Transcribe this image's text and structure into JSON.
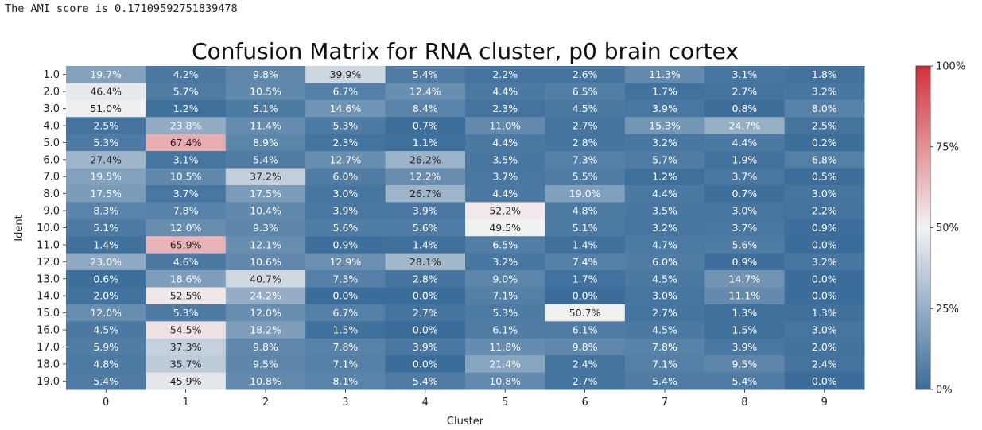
{
  "output_text": "The AMI score is 0.17109592751839478",
  "chart_data": {
    "type": "heatmap",
    "title": "Confusion Matrix for RNA cluster, p0 brain cortex",
    "xlabel": "Cluster",
    "ylabel": "Ident",
    "x_categories": [
      "0",
      "1",
      "2",
      "3",
      "4",
      "5",
      "6",
      "7",
      "8",
      "9"
    ],
    "y_categories": [
      "1.0",
      "2.0",
      "3.0",
      "4.0",
      "5.0",
      "6.0",
      "7.0",
      "8.0",
      "9.0",
      "10.0",
      "11.0",
      "12.0",
      "13.0",
      "14.0",
      "15.0",
      "16.0",
      "17.0",
      "18.0",
      "19.0"
    ],
    "values": [
      [
        19.7,
        4.2,
        9.8,
        39.9,
        5.4,
        2.2,
        2.6,
        11.3,
        3.1,
        1.8
      ],
      [
        46.4,
        5.7,
        10.5,
        6.7,
        12.4,
        4.4,
        6.5,
        1.7,
        2.7,
        3.2
      ],
      [
        51.0,
        1.2,
        5.1,
        14.6,
        8.4,
        2.3,
        4.5,
        3.9,
        0.8,
        8.0
      ],
      [
        2.5,
        23.8,
        11.4,
        5.3,
        0.7,
        11.0,
        2.7,
        15.3,
        24.7,
        2.5
      ],
      [
        5.3,
        67.4,
        8.9,
        2.3,
        1.1,
        4.4,
        2.8,
        3.2,
        4.4,
        0.2
      ],
      [
        27.4,
        3.1,
        5.4,
        12.7,
        26.2,
        3.5,
        7.3,
        5.7,
        1.9,
        6.8
      ],
      [
        19.5,
        10.5,
        37.2,
        6.0,
        12.2,
        3.7,
        5.5,
        1.2,
        3.7,
        0.5
      ],
      [
        17.5,
        3.7,
        17.5,
        3.0,
        26.7,
        4.4,
        19.0,
        4.4,
        0.7,
        3.0
      ],
      [
        8.3,
        7.8,
        10.4,
        3.9,
        3.9,
        52.2,
        4.8,
        3.5,
        3.0,
        2.2
      ],
      [
        5.1,
        12.0,
        9.3,
        5.6,
        5.6,
        49.5,
        5.1,
        3.2,
        3.7,
        0.9
      ],
      [
        1.4,
        65.9,
        12.1,
        0.9,
        1.4,
        6.5,
        1.4,
        4.7,
        5.6,
        0.0
      ],
      [
        23.0,
        4.6,
        10.6,
        12.9,
        28.1,
        3.2,
        7.4,
        6.0,
        0.9,
        3.2
      ],
      [
        0.6,
        18.6,
        40.7,
        7.3,
        2.8,
        9.0,
        1.7,
        4.5,
        14.7,
        0.0
      ],
      [
        2.0,
        52.5,
        24.2,
        0.0,
        0.0,
        7.1,
        0.0,
        3.0,
        11.1,
        0.0
      ],
      [
        12.0,
        5.3,
        12.0,
        6.7,
        2.7,
        5.3,
        50.7,
        2.7,
        1.3,
        1.3
      ],
      [
        4.5,
        54.5,
        18.2,
        1.5,
        0.0,
        6.1,
        6.1,
        4.5,
        1.5,
        3.0
      ],
      [
        5.9,
        37.3,
        9.8,
        7.8,
        3.9,
        11.8,
        9.8,
        7.8,
        3.9,
        2.0
      ],
      [
        4.8,
        35.7,
        9.5,
        7.1,
        0.0,
        21.4,
        2.4,
        7.1,
        9.5,
        2.4
      ],
      [
        5.4,
        45.9,
        10.8,
        8.1,
        5.4,
        10.8,
        2.7,
        5.4,
        5.4,
        0.0
      ]
    ],
    "value_format": "percent",
    "vmin": 0,
    "vmax": 100,
    "colormap": "diverging blue-white-red",
    "colors": {
      "low": "#3b6d9a",
      "mid": "#f2f2f2",
      "high": "#d2303a"
    },
    "colorbar_ticks": [
      {
        "value": 0,
        "label": "0%"
      },
      {
        "value": 25,
        "label": "25%"
      },
      {
        "value": 50,
        "label": "50%"
      },
      {
        "value": 75,
        "label": "75%"
      },
      {
        "value": 100,
        "label": "100%"
      }
    ]
  }
}
